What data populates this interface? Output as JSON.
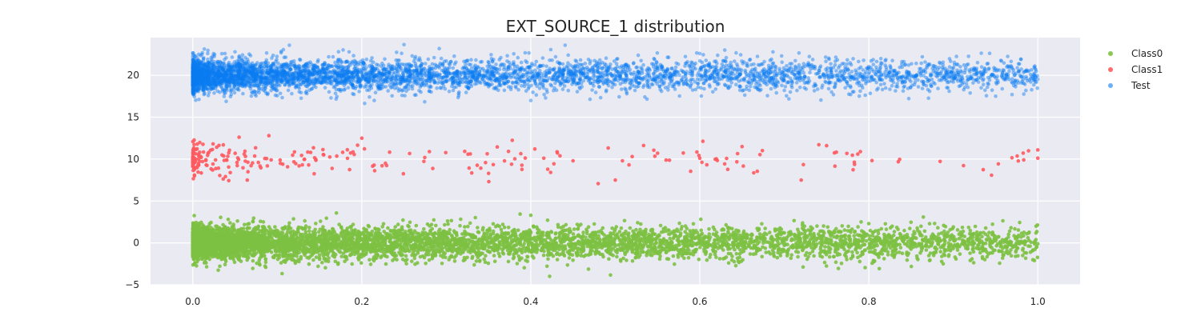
{
  "chart_data": {
    "type": "scatter",
    "title": "EXT_SOURCE_1 distribution",
    "xlabel": "",
    "ylabel": "",
    "xlim": [
      -0.05,
      1.05
    ],
    "ylim": [
      -5,
      24.5
    ],
    "xticks": [
      0.0,
      0.2,
      0.4,
      0.6,
      0.8,
      1.0
    ],
    "xtick_labels": [
      "0.0",
      "0.2",
      "0.4",
      "0.6",
      "0.8",
      "1.0"
    ],
    "yticks": [
      -5,
      0,
      5,
      10,
      15,
      20
    ],
    "ytick_labels": [
      "−5",
      "0",
      "5",
      "10",
      "15",
      "20"
    ],
    "grid": true,
    "background": "#EAEAF2",
    "legend_position": "upper-right-outside",
    "series": [
      {
        "name": "Class0",
        "color": "#7DC142",
        "alpha": 0.9,
        "y_center": 0,
        "y_spread": 1,
        "approx_points": 6000,
        "density_profile": "dense near x=0, decreasing toward x=1",
        "sample_points": [
          [
            0.0,
            0.2
          ],
          [
            0.05,
            -0.5
          ],
          [
            0.1,
            0.8
          ],
          [
            0.2,
            -0.3
          ],
          [
            0.3,
            0.5
          ],
          [
            0.4,
            3.3
          ],
          [
            0.5,
            -0.4
          ],
          [
            0.6,
            0.3
          ],
          [
            0.7,
            1.2
          ],
          [
            0.8,
            2.3
          ],
          [
            0.9,
            1.9
          ],
          [
            0.92,
            -2.1
          ],
          [
            1.0,
            -0.1
          ]
        ]
      },
      {
        "name": "Class1",
        "color": "#FF5A5F",
        "alpha": 0.9,
        "y_center": 10,
        "y_spread": 1,
        "approx_points": 260,
        "density_profile": "dense near x=0, sparse beyond x=0.2",
        "sample_points": [
          [
            0.01,
            10.2
          ],
          [
            0.09,
            12.8
          ],
          [
            0.2,
            12.5
          ],
          [
            0.28,
            10.9
          ],
          [
            0.35,
            8.3
          ],
          [
            0.42,
            8.8
          ],
          [
            0.45,
            9.8
          ],
          [
            0.5,
            7.5
          ],
          [
            0.52,
            10.3
          ],
          [
            0.55,
            10.7
          ],
          [
            0.6,
            10.1
          ],
          [
            0.65,
            11.5
          ],
          [
            0.72,
            7.5
          ],
          [
            0.75,
            11.6
          ],
          [
            0.79,
            10.9
          ],
          [
            1.0,
            11.1
          ]
        ]
      },
      {
        "name": "Test",
        "color": "#0A7CF2",
        "alpha": 0.45,
        "y_center": 20,
        "y_spread": 1,
        "approx_points": 5000,
        "density_profile": "dense near x=0, decreasing toward x=1",
        "sample_points": [
          [
            0.0,
            20.0
          ],
          [
            0.05,
            22.8
          ],
          [
            0.1,
            18.2
          ],
          [
            0.2,
            20.5
          ],
          [
            0.3,
            21.7
          ],
          [
            0.4,
            17.0
          ],
          [
            0.5,
            19.6
          ],
          [
            0.6,
            22.6
          ],
          [
            0.7,
            18.2
          ],
          [
            0.8,
            20.9
          ],
          [
            0.9,
            19.2
          ],
          [
            0.95,
            17.5
          ],
          [
            0.98,
            21.9
          ]
        ]
      }
    ]
  }
}
